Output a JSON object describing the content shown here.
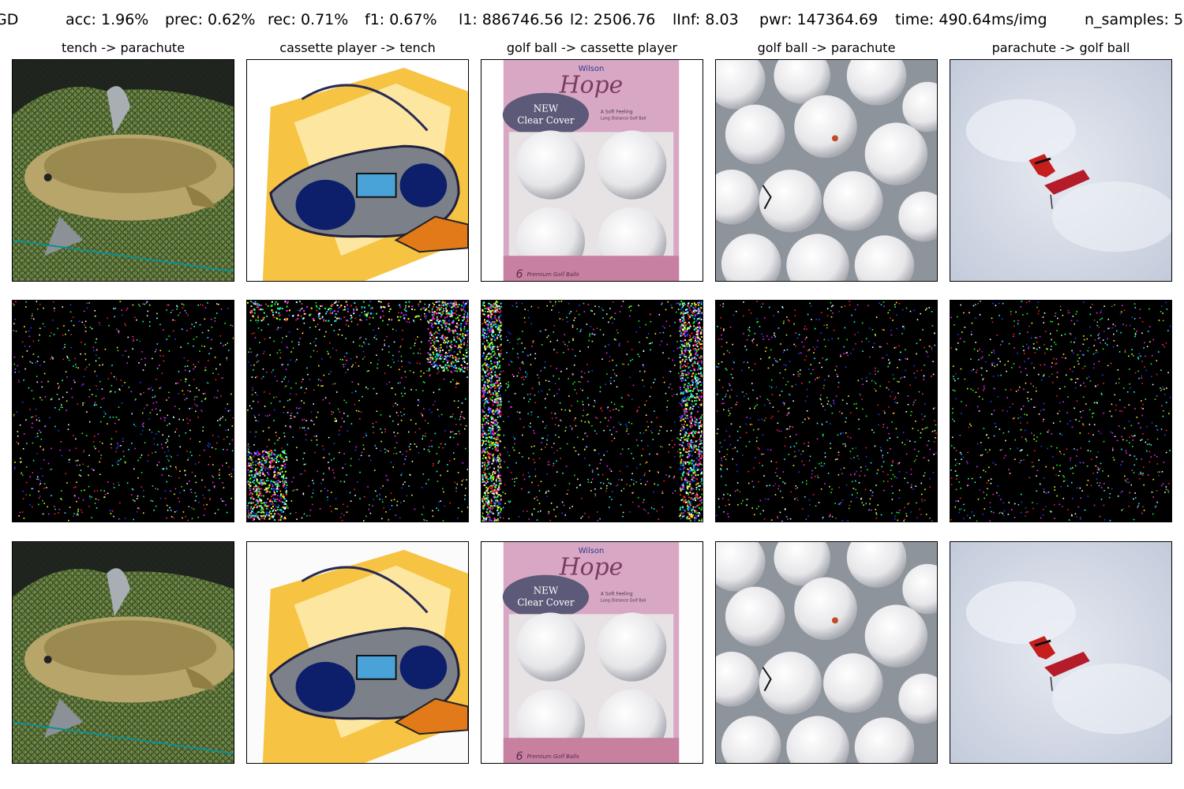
{
  "header": {
    "method": "GD",
    "acc": "acc: 1.96%",
    "prec": "prec: 0.62%",
    "rec": "rec: 0.71%",
    "f1": "f1: 0.67%",
    "l1": "l1: 886746.56",
    "l2": "l2: 2506.76",
    "linf": "lInf: 8.03",
    "pwr": "pwr: 147364.69",
    "time": "time: 490.64ms/img",
    "n_samples": "n_samples: 5"
  },
  "columns": [
    {
      "title": "tench -> parachute",
      "subject": "tench"
    },
    {
      "title": "cassette player -> tench",
      "subject": "cassette player"
    },
    {
      "title": "golf ball -> cassette player",
      "subject": "golf ball box"
    },
    {
      "title": "golf ball -> parachute",
      "subject": "golf balls"
    },
    {
      "title": "parachute -> golf ball",
      "subject": "parachute"
    }
  ],
  "box_text": {
    "brand": "Wilson",
    "script": "Hope",
    "cover_line1": "NEW",
    "cover_line2": "Clear Cover",
    "tag1": "A Soft Feeling",
    "tag2": "Long Distance Golf Ball",
    "count": "6",
    "count_label": "Premium Golf Balls"
  },
  "colors": {
    "background": "#ffffff",
    "noise_background": "#000000",
    "frame": "#000000"
  }
}
